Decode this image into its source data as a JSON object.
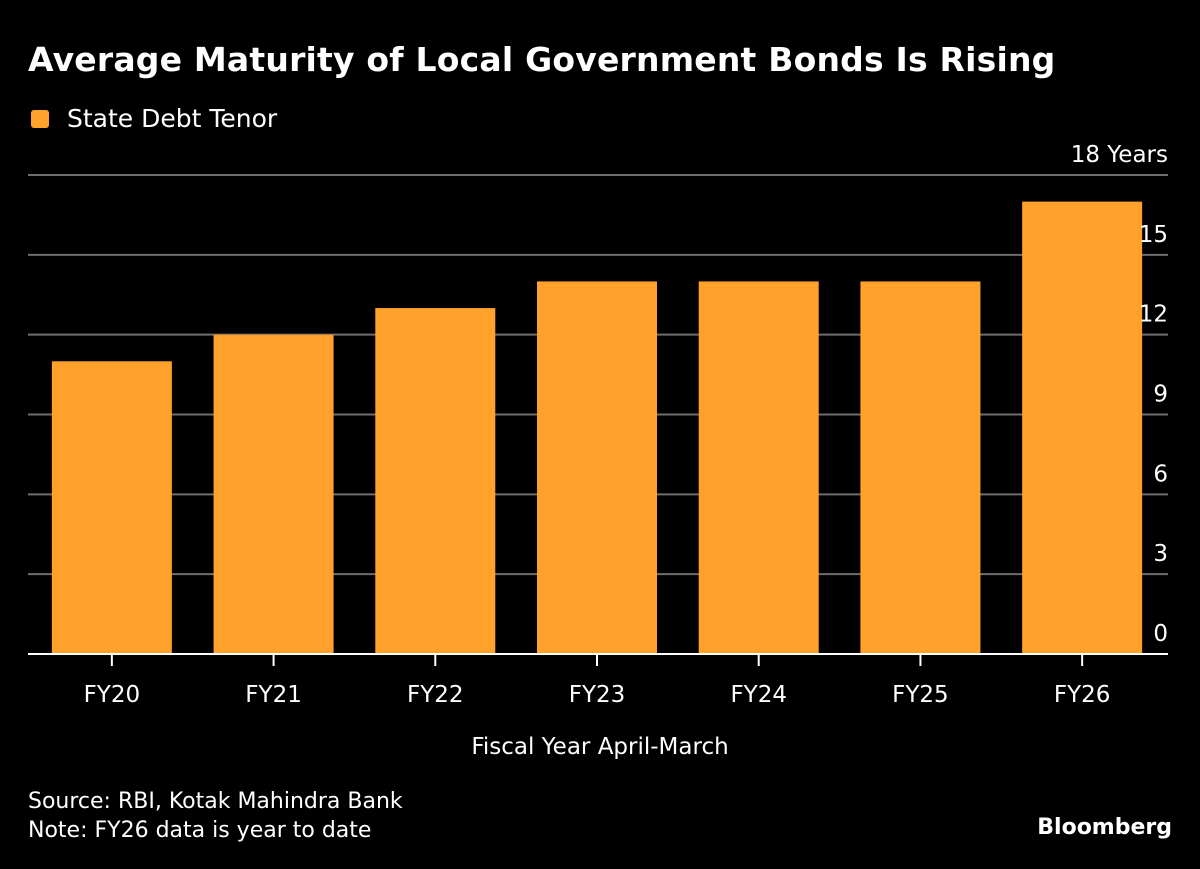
{
  "title": "Average Maturity of Local Government Bonds Is Rising",
  "legend": {
    "label": "State Debt Tenor",
    "color": "#ffa12b"
  },
  "footer": {
    "source": "Source: RBI, Kotak Mahindra Bank",
    "note": "Note: FY26 data is year to date"
  },
  "brand": "Bloomberg",
  "colors": {
    "bar": "#ffa12b",
    "background": "#000000",
    "grid": "#6e6e6e",
    "axis": "#ffffff",
    "text": "#ffffff"
  },
  "chart_data": {
    "type": "bar",
    "title": "Average Maturity of Local Government Bonds Is Rising",
    "categories": [
      "FY20",
      "FY21",
      "FY22",
      "FY23",
      "FY24",
      "FY25",
      "FY26"
    ],
    "series": [
      {
        "name": "State Debt Tenor",
        "values": [
          11,
          12,
          13,
          14,
          14,
          14,
          17
        ]
      }
    ],
    "xlabel": "Fiscal Year April-March",
    "ylabel": "",
    "yunit_label": "18 Years",
    "ylim": [
      0,
      18
    ],
    "yticks": [
      0,
      3,
      6,
      9,
      12,
      15,
      18
    ],
    "ytick_labels": [
      "0",
      "3",
      "6",
      "9",
      "12",
      "15",
      "18 Years"
    ],
    "y_axis_side": "right",
    "grid": true,
    "legend_position": "top-left"
  }
}
